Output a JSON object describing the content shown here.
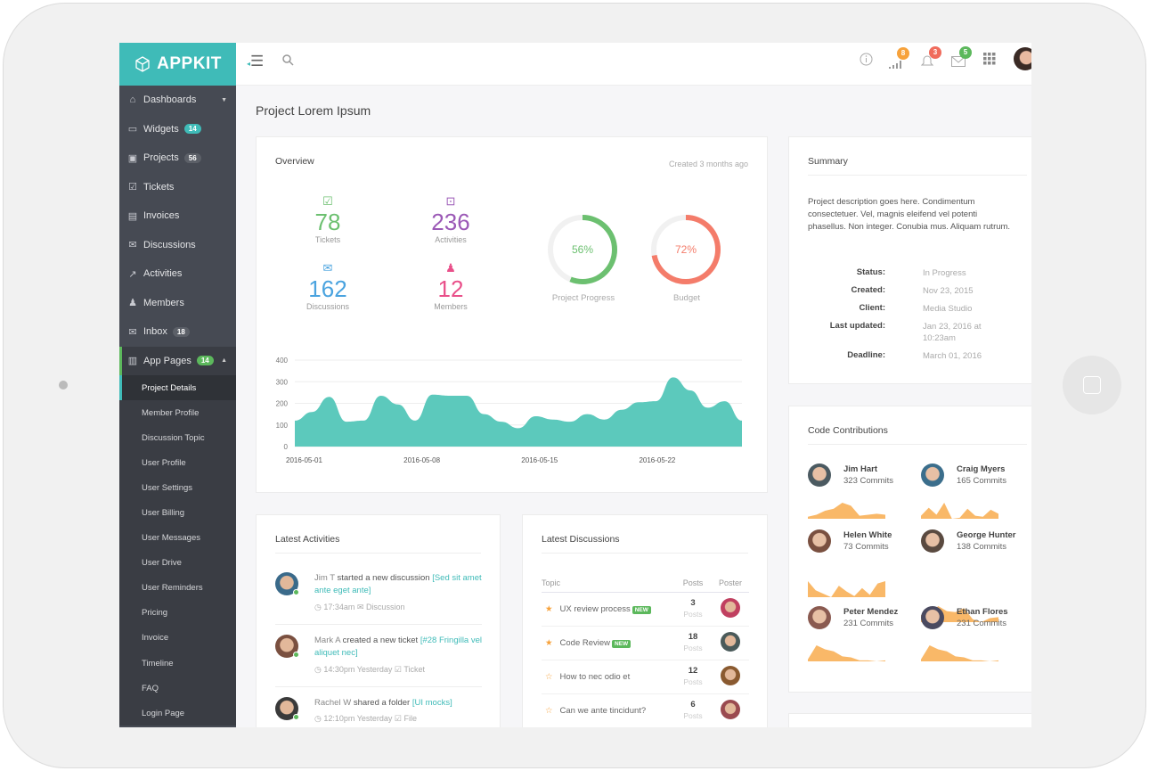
{
  "app": {
    "logo": "APPKIT"
  },
  "topbar": {
    "badges": {
      "activity": "8",
      "notifications": "3",
      "messages": "5"
    },
    "colors": {
      "activity": "#f7a23b",
      "notifications": "#f06b5c",
      "messages": "#5cb85c"
    }
  },
  "sidebar": {
    "items": [
      {
        "label": "Dashboards",
        "icon": "home-icon",
        "caret": true
      },
      {
        "label": "Widgets",
        "icon": "inbox-icon",
        "badge": "14",
        "badge_style": "teal"
      },
      {
        "label": "Projects",
        "icon": "briefcase-icon",
        "badge": "56"
      },
      {
        "label": "Tickets",
        "icon": "ticket-icon"
      },
      {
        "label": "Invoices",
        "icon": "invoice-icon"
      },
      {
        "label": "Discussions",
        "icon": "chat-icon"
      },
      {
        "label": "Activities",
        "icon": "chart-icon"
      },
      {
        "label": "Members",
        "icon": "users-icon"
      },
      {
        "label": "Inbox",
        "icon": "mail-icon",
        "badge": "18"
      },
      {
        "label": "App Pages",
        "icon": "pages-icon",
        "badge": "14",
        "badge_style": "green",
        "expanded": true
      }
    ],
    "subitems": [
      "Project Details",
      "Member Profile",
      "Discussion Topic",
      "User Profile",
      "User Settings",
      "User Billing",
      "User Messages",
      "User Drive",
      "User Reminders",
      "Pricing",
      "Invoice",
      "Timeline",
      "FAQ",
      "Login Page"
    ],
    "active_subitem": "Project Details"
  },
  "page": {
    "title": "Project Lorem Ipsum"
  },
  "overview": {
    "title": "Overview",
    "created": "Created 3 months ago",
    "stats": [
      {
        "value": "78",
        "label": "Tickets",
        "icon": "check-square-icon",
        "color": "#6cc070"
      },
      {
        "value": "236",
        "label": "Activities",
        "icon": "presentation-icon",
        "color": "#9b59b6"
      },
      {
        "value": "162",
        "label": "Discussions",
        "icon": "chat-icon",
        "color": "#4aa3df"
      },
      {
        "value": "12",
        "label": "Members",
        "icon": "users-icon",
        "color": "#e9508a"
      }
    ],
    "donuts": [
      {
        "value": 56,
        "text": "56%",
        "label": "Project Progress",
        "color": "#6cc070"
      },
      {
        "value": 72,
        "text": "72%",
        "label": "Budget",
        "color": "#f47c6a"
      }
    ]
  },
  "chart_data": {
    "type": "area",
    "color": "#5cc9bc",
    "ylim": [
      0,
      400
    ],
    "yticks": [
      "0",
      "100",
      "200",
      "300",
      "400"
    ],
    "xticks": [
      "2016-05-01",
      "2016-05-08",
      "2016-05-15",
      "2016-05-22"
    ],
    "grid": true,
    "x": [
      "2016-05-01",
      "2016-05-02",
      "2016-05-03",
      "2016-05-04",
      "2016-05-05",
      "2016-05-06",
      "2016-05-07",
      "2016-05-08",
      "2016-05-09",
      "2016-05-10",
      "2016-05-11",
      "2016-05-12",
      "2016-05-13",
      "2016-05-14",
      "2016-05-15",
      "2016-05-16",
      "2016-05-17",
      "2016-05-18",
      "2016-05-19",
      "2016-05-20",
      "2016-05-21",
      "2016-05-22",
      "2016-05-23",
      "2016-05-24",
      "2016-05-25",
      "2016-05-26",
      "2016-05-27"
    ],
    "values": [
      120,
      160,
      230,
      115,
      120,
      235,
      195,
      120,
      240,
      235,
      235,
      150,
      115,
      85,
      140,
      125,
      115,
      150,
      125,
      170,
      205,
      210,
      320,
      260,
      180,
      210,
      120
    ]
  },
  "summary": {
    "title": "Summary",
    "description": "Project description goes here. Condimentum consectetuer. Vel, magnis eleifend vel potenti phasellus. Non integer. Conubia mus. Aliquam rutrum.",
    "fields": [
      {
        "k": "Status:",
        "v": "In Progress"
      },
      {
        "k": "Created:",
        "v": "Nov 23, 2015"
      },
      {
        "k": "Client:",
        "v": "Media Studio"
      },
      {
        "k": "Last updated:",
        "v": "Jan 23, 2016 at 10:23am"
      },
      {
        "k": "Deadline:",
        "v": "March 01, 2016"
      }
    ]
  },
  "contributions": {
    "title": "Code Contributions",
    "color": "#f9b868",
    "people": [
      {
        "name": "Jim Hart",
        "commits": "323 Commits",
        "spark": [
          2,
          4,
          8,
          10,
          16,
          13,
          3,
          4,
          5,
          4
        ]
      },
      {
        "name": "Craig Myers",
        "commits": "165 Commits",
        "spark": [
          3,
          11,
          4,
          16,
          0,
          1,
          10,
          3,
          2,
          9,
          5
        ]
      },
      {
        "name": "Helen White",
        "commits": "73 Commits",
        "spark": [
          14,
          6,
          3,
          0,
          10,
          5,
          1,
          8,
          2,
          12,
          14
        ]
      },
      {
        "name": "George Hunter",
        "commits": "138 Commits",
        "spark": [
          7,
          9,
          16,
          11,
          10,
          14,
          3,
          0,
          4,
          5
        ]
      },
      {
        "name": "Peter Mendez",
        "commits": "231 Commits",
        "spark": [
          2,
          16,
          12,
          10,
          5,
          4,
          1,
          1,
          0,
          1
        ]
      },
      {
        "name": "Ethan Flores",
        "commits": "231 Commits",
        "spark": [
          2,
          16,
          12,
          10,
          5,
          4,
          1,
          1,
          0,
          1
        ]
      }
    ]
  },
  "activities": {
    "title": "Latest Activities",
    "items": [
      {
        "actor": "Jim T",
        "action": " started a new discussion ",
        "target": "[Sed sit amet ante eget ante]",
        "time": "17:34am",
        "type": "Discussion",
        "type_icon": "chat-icon"
      },
      {
        "actor": "Mark A",
        "action": " created a new ticket ",
        "target": "[#28 Fringilla vel aliquet nec]",
        "time": "14:30pm Yesterday",
        "type": "Ticket",
        "type_icon": "check-square-icon"
      },
      {
        "actor": "Rachel W",
        "action": " shared a folder ",
        "target": "[UI mocks]",
        "time": "12:10pm Yesterday",
        "type": "File",
        "type_icon": "check-square-icon"
      }
    ]
  },
  "discussions": {
    "title": "Latest Discussions",
    "headers": [
      "Topic",
      "Posts",
      "Poster"
    ],
    "rows": [
      {
        "topic": "UX review process",
        "new": "NEW",
        "starred": true,
        "posts": "3",
        "posts_label": "Posts"
      },
      {
        "topic": "Code Review",
        "new": "NEW",
        "starred": true,
        "posts": "18",
        "posts_label": "Posts"
      },
      {
        "topic": "How to nec odio et",
        "starred": false,
        "posts": "12",
        "posts_label": "Posts"
      },
      {
        "topic": "Can we ante tincidunt?",
        "starred": false,
        "posts": "6",
        "posts_label": "Posts"
      }
    ]
  }
}
